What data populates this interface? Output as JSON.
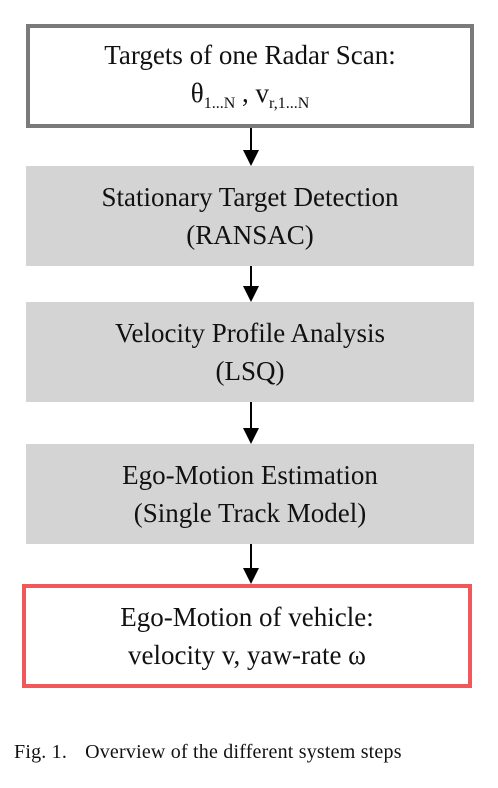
{
  "input": {
    "line1": "Targets of one Radar Scan:",
    "theta": "θ",
    "theta_sub": "1...N",
    "separator": " , ",
    "v": "v",
    "v_sub": "r,1...N"
  },
  "steps": [
    {
      "title": "Stationary Target Detection",
      "method": "(RANSAC)"
    },
    {
      "title": "Velocity Profile Analysis",
      "method": "(LSQ)"
    },
    {
      "title": "Ego-Motion Estimation",
      "method": "(Single Track Model)"
    }
  ],
  "output": {
    "line1": "Ego-Motion of vehicle:",
    "line2": "velocity v, yaw-rate ω"
  },
  "caption": {
    "label": "Fig. 1.",
    "text": "Overview of the different system steps"
  },
  "colors": {
    "input_border": "#7a7a7a",
    "step_fill": "#d4d4d4",
    "output_border": "#f0585a"
  }
}
